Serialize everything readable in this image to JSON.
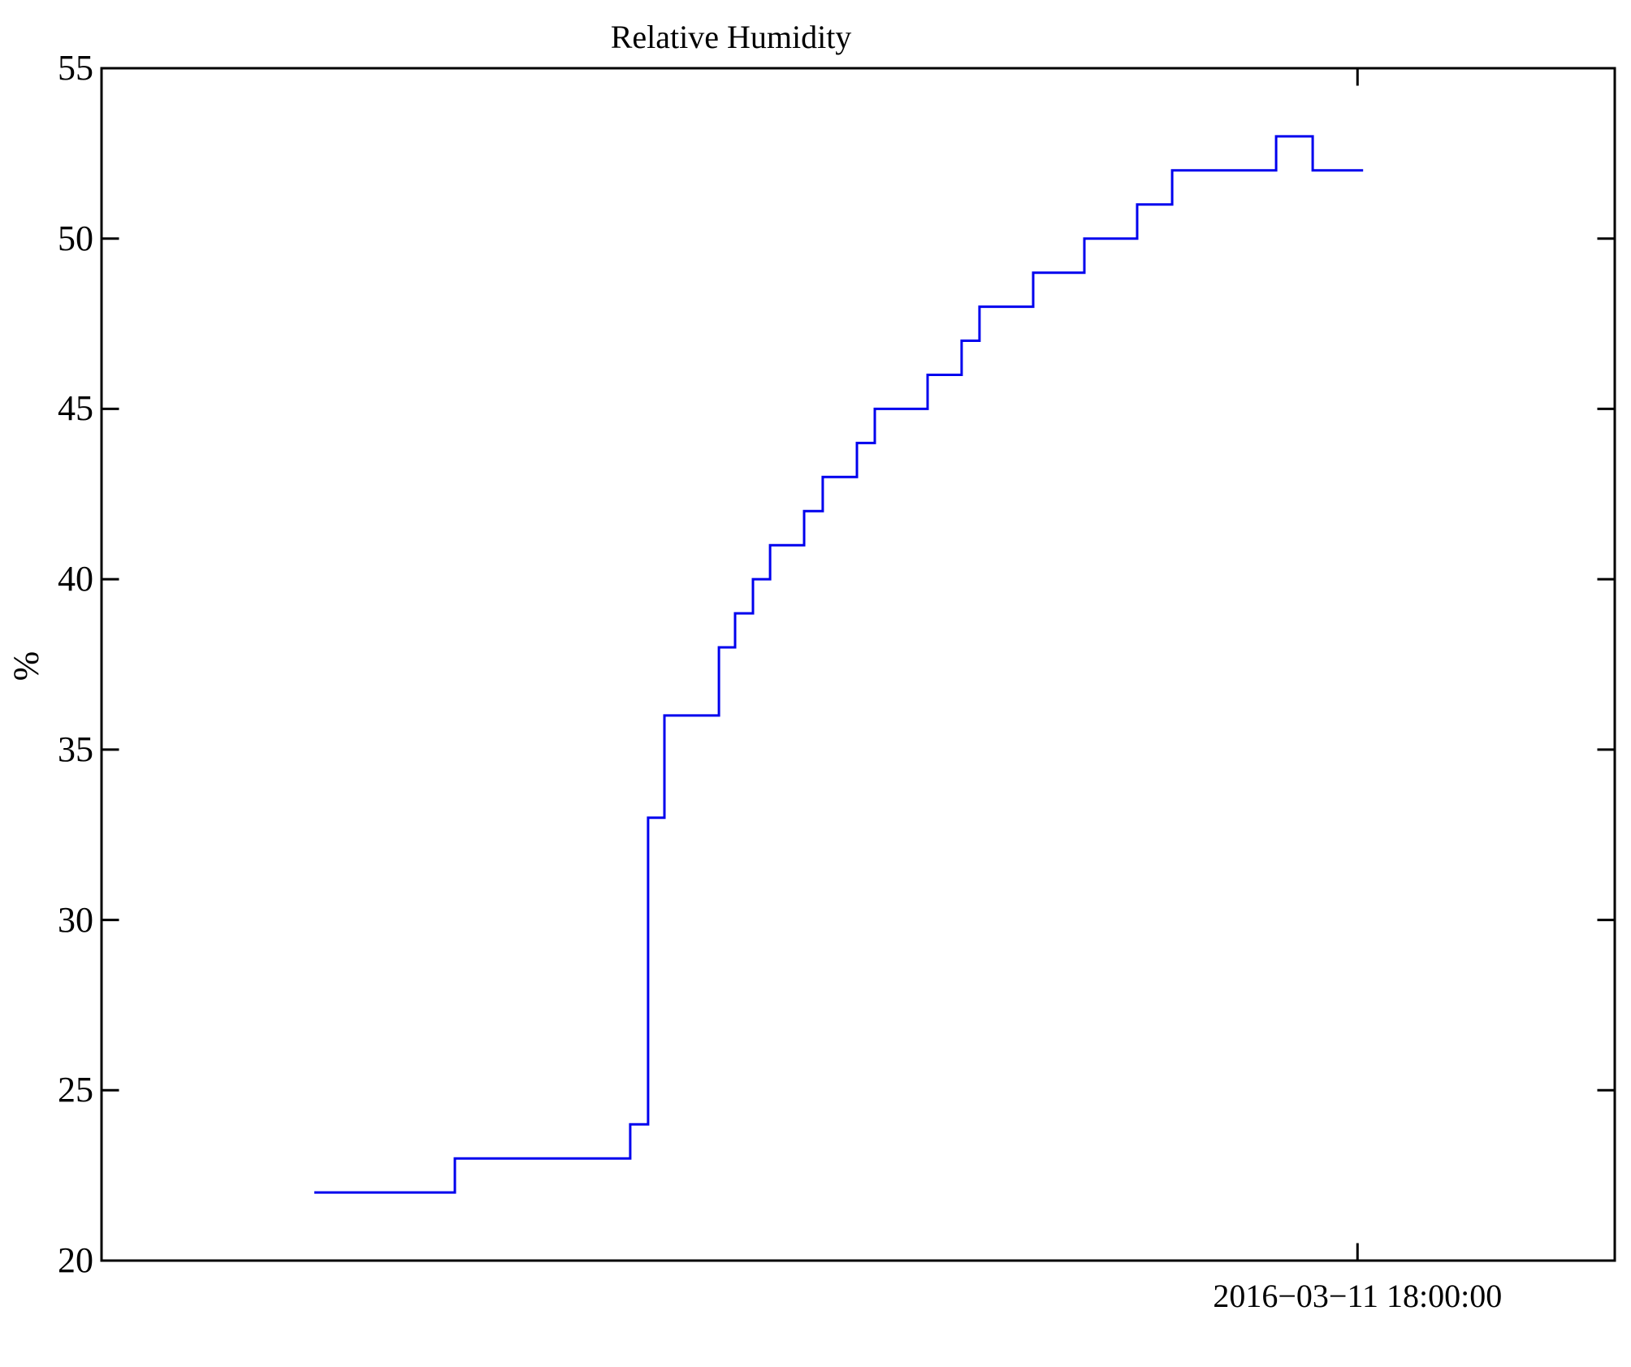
{
  "chart": {
    "title": "Relative Humidity"
  },
  "chart_data": {
    "type": "line",
    "style": "steps-post",
    "title": "Relative Humidity",
    "xlabel": "",
    "ylabel": "%",
    "ylim": [
      20,
      55
    ],
    "y_ticks": [
      20,
      25,
      30,
      35,
      40,
      45,
      50,
      55
    ],
    "x_tick": {
      "label": "2016−03−11 18:00:00",
      "position_frac": 0.83
    },
    "grid": false,
    "legend": "none",
    "line_color": "#0000ee",
    "axis_color": "#000000",
    "background_color": "#ffffff",
    "values_sequence": [
      22,
      23,
      24,
      33,
      36,
      38,
      39,
      40,
      41,
      42,
      43,
      44,
      45,
      46,
      47,
      48,
      49,
      50,
      51,
      52,
      53,
      52
    ],
    "series": [
      {
        "name": "relative_humidity_percent",
        "note": "step changes along x given as fraction of plot width; value holds until next step",
        "points": [
          [
            0.1406,
            22
          ],
          [
            0.2335,
            23
          ],
          [
            0.3494,
            24
          ],
          [
            0.3612,
            33
          ],
          [
            0.372,
            36
          ],
          [
            0.408,
            38
          ],
          [
            0.4187,
            39
          ],
          [
            0.4305,
            40
          ],
          [
            0.4418,
            41
          ],
          [
            0.4643,
            42
          ],
          [
            0.4766,
            43
          ],
          [
            0.4992,
            44
          ],
          [
            0.511,
            45
          ],
          [
            0.5459,
            46
          ],
          [
            0.5684,
            47
          ],
          [
            0.5802,
            48
          ],
          [
            0.6157,
            49
          ],
          [
            0.6495,
            50
          ],
          [
            0.6844,
            51
          ],
          [
            0.7075,
            52
          ],
          [
            0.7762,
            53
          ],
          [
            0.8004,
            52
          ]
        ],
        "end_frac": 0.8337
      }
    ]
  }
}
